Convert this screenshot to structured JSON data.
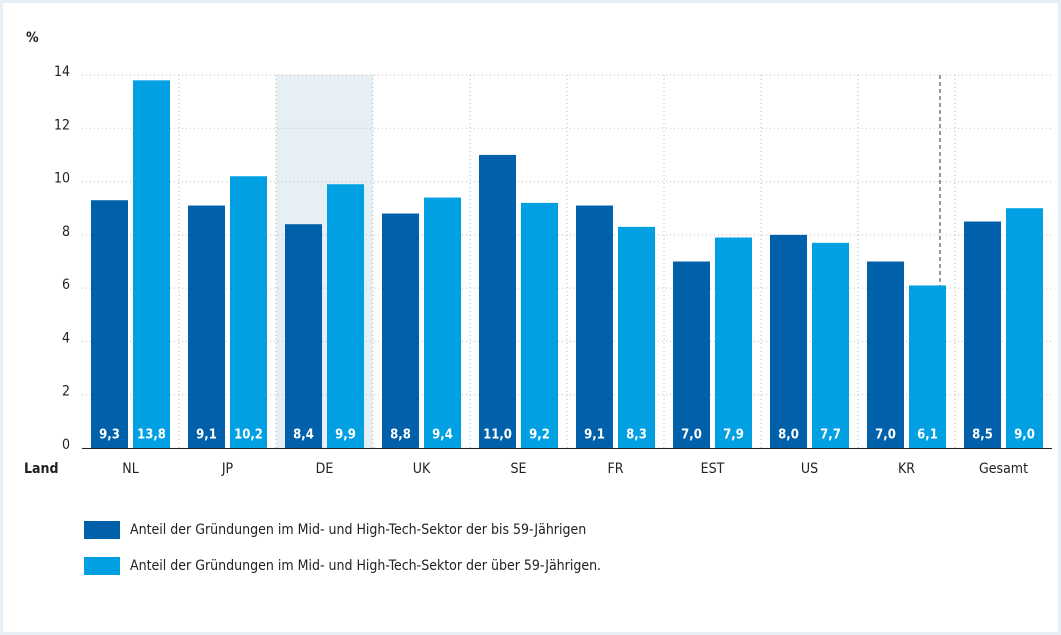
{
  "chart_data": {
    "type": "bar",
    "y_axis_label": "%",
    "x_axis_label": "Land",
    "categories": [
      "NL",
      "JP",
      "DE",
      "UK",
      "SE",
      "FR",
      "EST",
      "US",
      "KR",
      "Gesamt"
    ],
    "series": [
      {
        "name": "Anteil der Gründungen im Mid- und High-Tech-Sektor der bis 59-Jährigen",
        "color": "#0060aa",
        "values": [
          9.3,
          9.1,
          8.4,
          8.8,
          11.0,
          9.1,
          7.0,
          8.0,
          7.0,
          8.5
        ],
        "value_labels": [
          "9,3",
          "9,1",
          "8,4",
          "8,8",
          "11,0",
          "9,1",
          "7,0",
          "8,0",
          "7,0",
          "8,5"
        ]
      },
      {
        "name": "Anteil der Gründungen im Mid- und High-Tech-Sektor der über 59-Jährigen.",
        "color": "#00a0e3",
        "values": [
          13.8,
          10.2,
          9.9,
          9.4,
          9.2,
          8.3,
          7.9,
          7.7,
          6.1,
          9.0
        ],
        "value_labels": [
          "13,8",
          "10,2",
          "9,9",
          "9,4",
          "9,2",
          "8,3",
          "7,9",
          "7,7",
          "6,1",
          "9,0"
        ]
      }
    ],
    "ylim": [
      0,
      14
    ],
    "yticks": [
      0,
      2,
      4,
      6,
      8,
      10,
      12,
      14
    ],
    "grid": true,
    "highlight_category": "DE",
    "separator_before": "Gesamt"
  }
}
